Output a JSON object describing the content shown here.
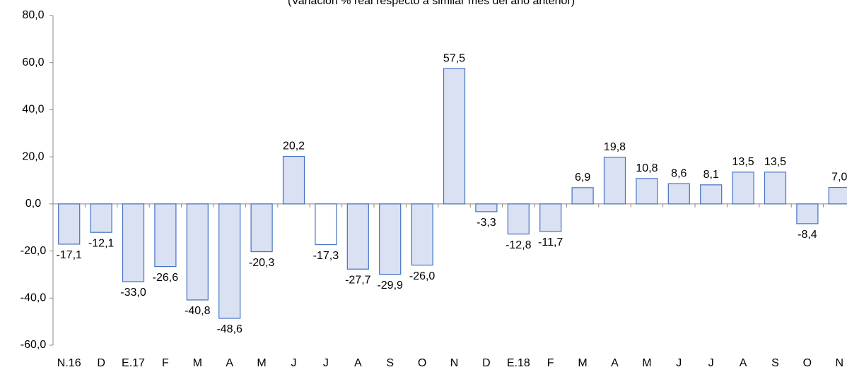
{
  "chart_data": {
    "type": "bar",
    "subtitle": "(Variación % real respecto a similar mes del año anterior)",
    "categories": [
      "N.16",
      "D",
      "E.17",
      "F",
      "M",
      "A",
      "M",
      "J",
      "J",
      "A",
      "S",
      "O",
      "N",
      "D",
      "E.18",
      "F",
      "M",
      "A",
      "M",
      "J",
      "J",
      "A",
      "S",
      "O",
      "N"
    ],
    "values": [
      -17.1,
      -12.1,
      -33.0,
      -26.6,
      -40.8,
      -48.6,
      -20.3,
      20.2,
      -17.3,
      -27.7,
      -29.9,
      -26.0,
      57.5,
      -3.3,
      -12.8,
      -11.7,
      6.9,
      19.8,
      10.8,
      8.6,
      8.1,
      13.5,
      13.5,
      -8.4,
      7.0
    ],
    "value_labels": [
      "-17,1",
      "-12,1",
      "-33,0",
      "-26,6",
      "-40,8",
      "-48,6",
      "-20,3",
      "20,2",
      "-17,3",
      "-27,7",
      "-29,9",
      "-26,0",
      "57,5",
      "-3,3",
      "-12,8",
      "-11,7",
      "6,9",
      "19,8",
      "10,8",
      "8,6",
      "8,1",
      "13,5",
      "13,5",
      "-8,4",
      "7,0"
    ],
    "colors": [
      "#d9e1f2",
      "#d9e1f2",
      "#d9e1f2",
      "#d9e1f2",
      "#d9e1f2",
      "#d9e1f2",
      "#d9e1f2",
      "#d9e1f2",
      "#ffffff",
      "#d9e1f2",
      "#d9e1f2",
      "#d9e1f2",
      "#d9e1f2",
      "#d9e1f2",
      "#d9e1f2",
      "#d9e1f2",
      "#d9e1f2",
      "#d9e1f2",
      "#d9e1f2",
      "#d9e1f2",
      "#d9e1f2",
      "#d9e1f2",
      "#d9e1f2",
      "#d9e1f2",
      "#d9e1f2"
    ],
    "edge_color": "#4472c4",
    "ylim": [
      -60,
      80
    ],
    "yticks": [
      {
        "value": -60,
        "label": "-60,0"
      },
      {
        "value": -40,
        "label": "-40,0"
      },
      {
        "value": -20,
        "label": "-20,0"
      },
      {
        "value": 0,
        "label": "0,0"
      },
      {
        "value": 20,
        "label": "20,0"
      },
      {
        "value": 40,
        "label": "40,0"
      },
      {
        "value": 60,
        "label": "60,0"
      },
      {
        "value": 80,
        "label": "80,0"
      }
    ],
    "grid": false
  }
}
